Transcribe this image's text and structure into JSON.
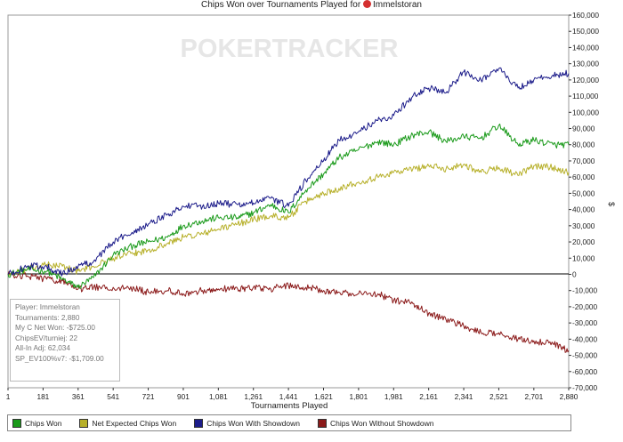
{
  "chart_data": {
    "type": "line",
    "title": "Chips Won over Tournaments Played for",
    "player_name": "Immelstoran",
    "watermark": "POKERTRACKER",
    "xlabel": "Tournaments Played",
    "ylabel": "$",
    "xlim": [
      1,
      2880
    ],
    "ylim": [
      -70000,
      160000
    ],
    "x_ticks": [
      "1",
      "181",
      "361",
      "541",
      "721",
      "901",
      "1,081",
      "1,261",
      "1,441",
      "1,621",
      "1,801",
      "1,981",
      "2,161",
      "2,341",
      "2,521",
      "2,701",
      "2,880"
    ],
    "y_ticks": [
      "160,000",
      "150,000",
      "140,000",
      "130,000",
      "120,000",
      "110,000",
      "100,000",
      "90,000",
      "80,000",
      "70,000",
      "60,000",
      "50,000",
      "40,000",
      "30,000",
      "20,000",
      "10,000",
      "0",
      "-10,000",
      "-20,000",
      "-30,000",
      "-40,000",
      "-50,000",
      "-60,000",
      "-70,000"
    ],
    "legend_position": "bottom",
    "grid": false,
    "series": [
      {
        "name": "Chips Won",
        "color": "#1a9a1a",
        "x": [
          1,
          100,
          200,
          280,
          361,
          440,
          541,
          650,
          721,
          820,
          901,
          1000,
          1081,
          1180,
          1261,
          1350,
          1441,
          1530,
          1621,
          1700,
          1801,
          1900,
          1981,
          2080,
          2161,
          2250,
          2341,
          2430,
          2521,
          2620,
          2701,
          2800,
          2880
        ],
        "values": [
          0,
          3000,
          2000,
          -3000,
          -8000,
          -2000,
          12000,
          18000,
          20000,
          23000,
          30000,
          33000,
          35000,
          35000,
          38000,
          43000,
          38000,
          52000,
          62000,
          72000,
          77000,
          82000,
          80000,
          86000,
          88000,
          82000,
          85000,
          84000,
          92000,
          80000,
          83000,
          80000,
          80000
        ]
      },
      {
        "name": "Net Expected Chips Won",
        "color": "#b7b02a",
        "x": [
          1,
          100,
          200,
          280,
          361,
          440,
          541,
          650,
          721,
          820,
          901,
          1000,
          1081,
          1180,
          1261,
          1350,
          1441,
          1530,
          1621,
          1700,
          1801,
          1900,
          1981,
          2080,
          2161,
          2250,
          2341,
          2430,
          2521,
          2620,
          2701,
          2800,
          2880
        ],
        "values": [
          0,
          3000,
          6000,
          5000,
          2000,
          5000,
          10000,
          13000,
          15000,
          19000,
          23000,
          25000,
          28000,
          31000,
          34000,
          36000,
          35000,
          45000,
          50000,
          53000,
          57000,
          60000,
          63000,
          65000,
          67000,
          65000,
          68000,
          63000,
          66000,
          61000,
          67000,
          66000,
          63000
        ]
      },
      {
        "name": "Chips Won With Showdown",
        "color": "#1c1c8a",
        "x": [
          1,
          100,
          200,
          280,
          361,
          440,
          541,
          650,
          721,
          820,
          901,
          1000,
          1081,
          1180,
          1261,
          1350,
          1441,
          1530,
          1621,
          1700,
          1801,
          1900,
          1981,
          2080,
          2161,
          2250,
          2341,
          2430,
          2521,
          2620,
          2701,
          2800,
          2880
        ],
        "values": [
          0,
          5000,
          5000,
          0,
          5000,
          8000,
          20000,
          27000,
          31000,
          37000,
          42000,
          42000,
          44000,
          43000,
          44000,
          47000,
          42000,
          58000,
          70000,
          83000,
          88000,
          95000,
          98000,
          110000,
          115000,
          112000,
          125000,
          120000,
          127000,
          115000,
          120000,
          123000,
          124000
        ]
      },
      {
        "name": "Chips Won Without Showdown",
        "color": "#8b1a1a",
        "x": [
          1,
          100,
          200,
          280,
          361,
          440,
          541,
          650,
          721,
          820,
          901,
          1000,
          1081,
          1180,
          1261,
          1350,
          1441,
          1530,
          1621,
          1700,
          1801,
          1900,
          1981,
          2080,
          2161,
          2250,
          2341,
          2430,
          2521,
          2620,
          2701,
          2800,
          2880
        ],
        "values": [
          0,
          -1000,
          -3000,
          -4000,
          -9000,
          -8000,
          -8000,
          -9000,
          -11000,
          -10000,
          -12000,
          -10000,
          -9000,
          -9000,
          -8000,
          -9000,
          -7000,
          -8000,
          -10000,
          -11000,
          -12000,
          -12000,
          -16000,
          -18000,
          -24000,
          -28000,
          -32000,
          -36000,
          -36000,
          -40000,
          -41000,
          -43000,
          -47000
        ]
      }
    ]
  },
  "info": {
    "player": "Player: Immelstoran",
    "tournaments": "Tournaments: 2,880",
    "net_won": "My C Net Won: -$725.00",
    "chips_ev": "ChipsEV/turniej: 22",
    "allin_adj": "All-In Adj: 62,034",
    "sp_ev": "SP_EV100%v7: -$1,709.00"
  }
}
